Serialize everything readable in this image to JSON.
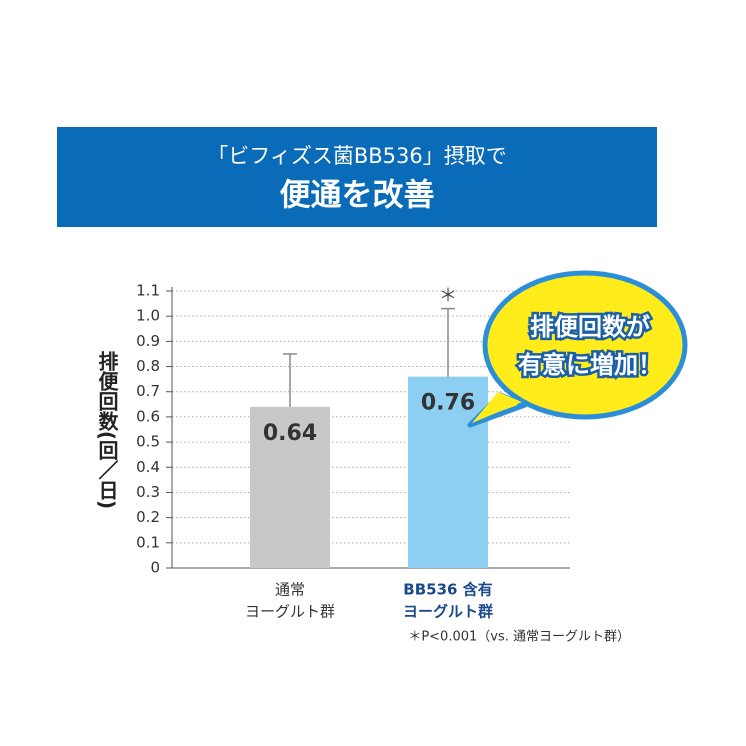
{
  "chart_data": {
    "type": "bar",
    "subtitle": "「ビフィズス菌BB536」摂取で",
    "title": "便通を改善",
    "y_label": "排便回数(回／日)",
    "categories": [
      [
        "通常",
        "ヨーグルト群"
      ],
      [
        "BB536 含有",
        "ヨーグルト群"
      ]
    ],
    "values": [
      0.64,
      0.76
    ],
    "errors": [
      0.21,
      0.27
    ],
    "colors": [
      "#c8c8c8",
      "#8ccff2"
    ],
    "error_color": "#888888",
    "significance": [
      null,
      "＊"
    ],
    "ylim": [
      0,
      1.1
    ],
    "yticks": [
      0,
      0.1,
      0.2,
      0.3,
      0.4,
      0.5,
      0.6,
      0.7,
      0.8,
      0.9,
      {
        "value": 1,
        "label": "1.0"
      },
      1.1
    ],
    "grid": true,
    "callout": [
      "排便回数が",
      "有意に増加！"
    ],
    "footnote": "＊P<0.001（vs. 通常ヨーグルト群）"
  }
}
